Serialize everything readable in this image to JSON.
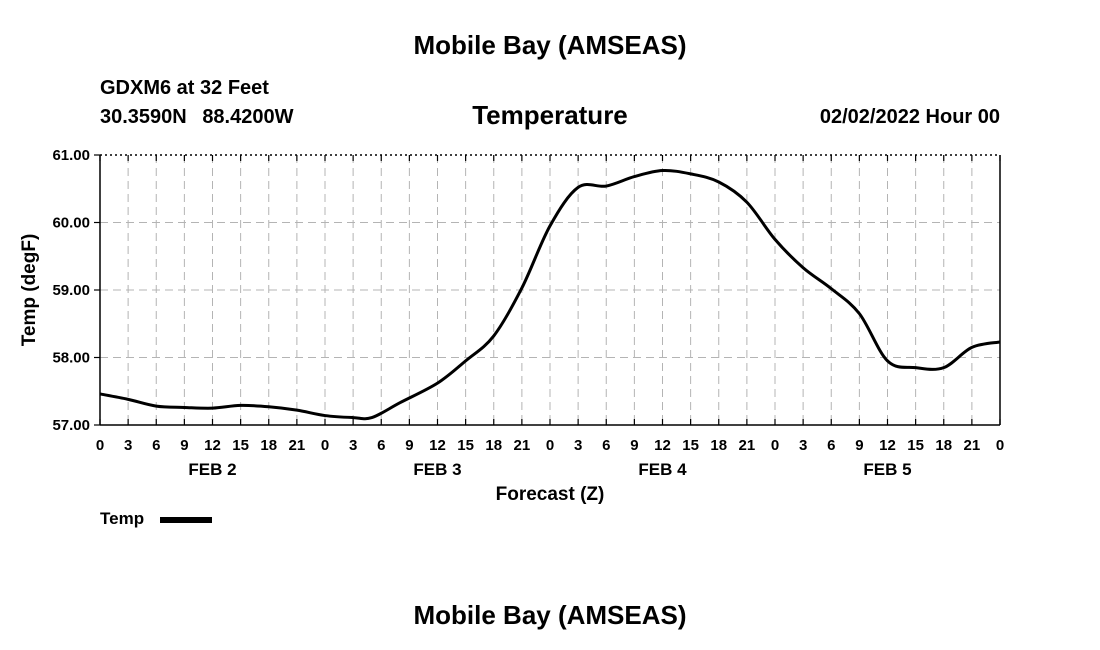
{
  "header": {
    "title": "Mobile Bay (AMSEAS)",
    "station": "GDXM6 at 32 Feet",
    "lat": "30.3590N",
    "lon": "88.4200W",
    "timestamp": "02/02/2022 Hour 00"
  },
  "footer": {
    "title": "Mobile Bay (AMSEAS)"
  },
  "chart_data": {
    "type": "line",
    "title": "Temperature",
    "xlabel": "Forecast (Z)",
    "ylabel": "Temp (degF)",
    "ylim": [
      57.0,
      61.0
    ],
    "yticks": [
      "57.00",
      "58.00",
      "59.00",
      "60.00",
      "61.00"
    ],
    "xlim_hours": [
      0,
      96
    ],
    "xtick_labels": [
      "0",
      "3",
      "6",
      "9",
      "12",
      "15",
      "18",
      "21",
      "0",
      "3",
      "6",
      "9",
      "12",
      "15",
      "18",
      "21",
      "0",
      "3",
      "6",
      "9",
      "12",
      "15",
      "18",
      "21",
      "0",
      "3",
      "6",
      "9",
      "12",
      "15",
      "18",
      "21",
      "0"
    ],
    "day_labels": [
      {
        "label": "FEB 2",
        "hour": 12
      },
      {
        "label": "FEB 3",
        "hour": 36
      },
      {
        "label": "FEB 4",
        "hour": 60
      },
      {
        "label": "FEB 5",
        "hour": 84
      }
    ],
    "grid": true,
    "line_color": "#000000",
    "series": [
      {
        "name": "Temp",
        "x": [
          0,
          3,
          6,
          9,
          12,
          15,
          18,
          21,
          24,
          27,
          29,
          32,
          36,
          39,
          42,
          45,
          48,
          51,
          54,
          57,
          60,
          63,
          66,
          69,
          72,
          75,
          78,
          81,
          84,
          87,
          90,
          93,
          96
        ],
        "values": [
          57.46,
          57.38,
          57.28,
          57.26,
          57.25,
          57.29,
          57.27,
          57.22,
          57.14,
          57.11,
          57.11,
          57.33,
          57.62,
          57.95,
          58.32,
          59.03,
          59.95,
          60.52,
          60.54,
          60.68,
          60.77,
          60.72,
          60.6,
          60.3,
          59.75,
          59.33,
          59.02,
          58.65,
          57.95,
          57.85,
          57.85,
          58.15,
          58.23
        ]
      }
    ]
  }
}
